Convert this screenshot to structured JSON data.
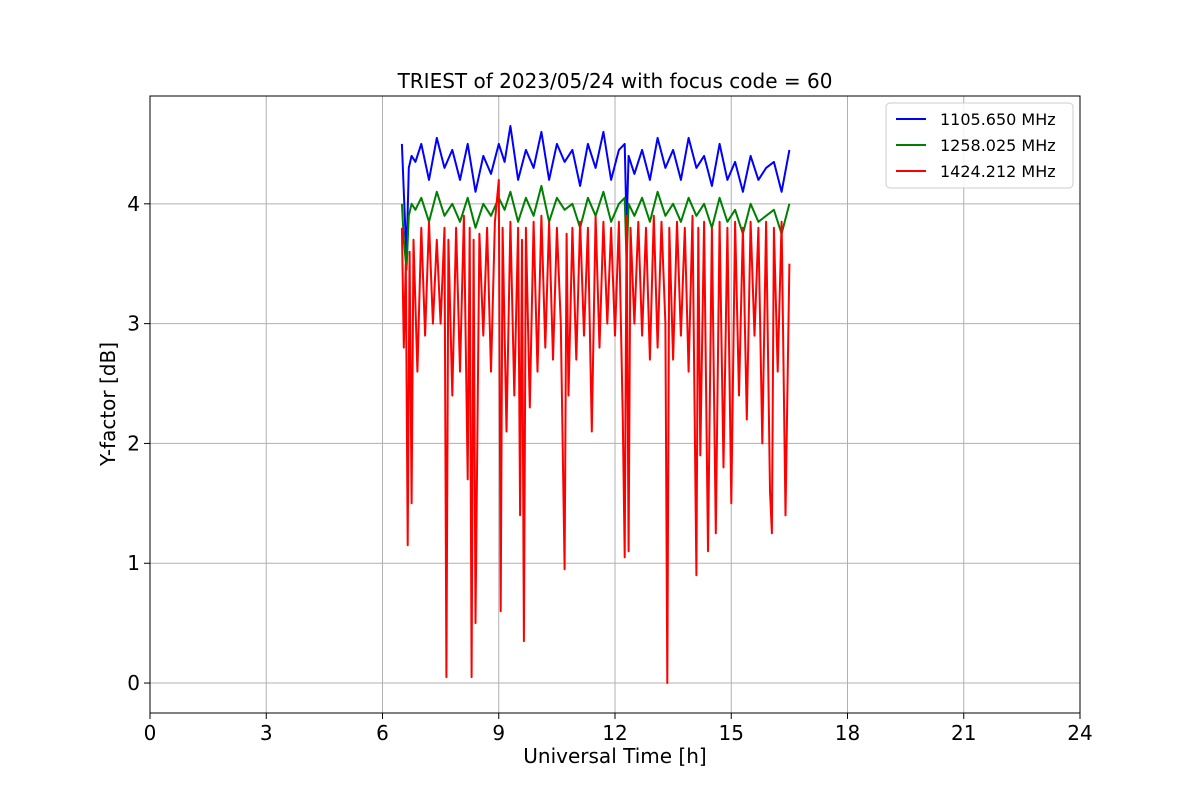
{
  "chart_data": {
    "type": "line",
    "title": "TRIEST of 2023/05/24 with focus code = 60",
    "xlabel": "Universal Time [h]",
    "ylabel": "Y-factor [dB]",
    "xlim": [
      0,
      24
    ],
    "ylim": [
      -0.25,
      4.9
    ],
    "xticks": [
      0,
      3,
      6,
      9,
      12,
      15,
      18,
      21,
      24
    ],
    "yticks": [
      0,
      1,
      2,
      3,
      4
    ],
    "grid": true,
    "legend_position": "top-right",
    "series": [
      {
        "name": "1105.650 MHz",
        "color": "#0000ff",
        "x": [
          6.5,
          6.55,
          6.62,
          6.68,
          6.75,
          6.85,
          7.0,
          7.2,
          7.4,
          7.6,
          7.8,
          8.0,
          8.2,
          8.4,
          8.6,
          8.8,
          9.0,
          9.15,
          9.3,
          9.5,
          9.7,
          9.9,
          10.1,
          10.3,
          10.5,
          10.7,
          10.9,
          11.1,
          11.3,
          11.5,
          11.7,
          11.9,
          12.1,
          12.25,
          12.3,
          12.35,
          12.5,
          12.7,
          12.9,
          13.1,
          13.3,
          13.5,
          13.7,
          13.9,
          14.1,
          14.3,
          14.5,
          14.7,
          14.9,
          15.1,
          15.3,
          15.5,
          15.7,
          15.9,
          16.1,
          16.3,
          16.5
        ],
        "y": [
          4.5,
          4.1,
          3.55,
          4.3,
          4.4,
          4.35,
          4.5,
          4.2,
          4.55,
          4.3,
          4.45,
          4.2,
          4.5,
          4.1,
          4.4,
          4.25,
          4.5,
          4.35,
          4.65,
          4.2,
          4.45,
          4.3,
          4.6,
          4.2,
          4.5,
          4.35,
          4.45,
          4.15,
          4.5,
          4.3,
          4.6,
          4.2,
          4.45,
          4.5,
          3.8,
          4.4,
          4.25,
          4.45,
          4.2,
          4.55,
          4.3,
          4.45,
          4.2,
          4.55,
          4.3,
          4.4,
          4.15,
          4.5,
          4.2,
          4.35,
          4.1,
          4.4,
          4.2,
          4.3,
          4.35,
          4.1,
          4.45
        ]
      },
      {
        "name": "1258.025 MHz",
        "color": "#008000",
        "x": [
          6.5,
          6.55,
          6.62,
          6.68,
          6.75,
          6.85,
          7.0,
          7.2,
          7.4,
          7.6,
          7.8,
          8.0,
          8.2,
          8.4,
          8.6,
          8.8,
          9.0,
          9.15,
          9.3,
          9.5,
          9.7,
          9.9,
          10.1,
          10.3,
          10.5,
          10.7,
          10.9,
          11.1,
          11.3,
          11.5,
          11.7,
          11.9,
          12.1,
          12.25,
          12.3,
          12.35,
          12.5,
          12.7,
          12.9,
          13.1,
          13.3,
          13.5,
          13.7,
          13.9,
          14.1,
          14.3,
          14.5,
          14.7,
          14.9,
          15.1,
          15.3,
          15.5,
          15.7,
          15.9,
          16.1,
          16.3,
          16.5
        ],
        "y": [
          4.0,
          3.7,
          3.45,
          3.9,
          4.0,
          3.95,
          4.05,
          3.85,
          4.1,
          3.9,
          4.0,
          3.85,
          4.05,
          3.8,
          4.0,
          3.9,
          4.05,
          3.95,
          4.1,
          3.85,
          4.05,
          3.9,
          4.15,
          3.85,
          4.05,
          3.95,
          4.0,
          3.8,
          4.05,
          3.9,
          4.1,
          3.85,
          4.0,
          4.05,
          3.5,
          4.0,
          3.9,
          4.05,
          3.85,
          4.1,
          3.9,
          4.0,
          3.85,
          4.05,
          3.9,
          4.0,
          3.8,
          4.05,
          3.85,
          3.95,
          3.75,
          4.0,
          3.85,
          3.9,
          3.95,
          3.75,
          4.0
        ]
      },
      {
        "name": "1424.212 MHz",
        "color": "#ff0000",
        "x": [
          6.5,
          6.55,
          6.6,
          6.65,
          6.7,
          6.75,
          6.8,
          6.9,
          7.0,
          7.1,
          7.2,
          7.3,
          7.4,
          7.5,
          7.6,
          7.65,
          7.7,
          7.8,
          7.9,
          8.0,
          8.1,
          8.2,
          8.25,
          8.3,
          8.35,
          8.4,
          8.5,
          8.6,
          8.7,
          8.8,
          8.9,
          9.0,
          9.05,
          9.1,
          9.2,
          9.3,
          9.4,
          9.5,
          9.55,
          9.6,
          9.65,
          9.7,
          9.8,
          9.9,
          10.0,
          10.1,
          10.2,
          10.3,
          10.4,
          10.5,
          10.6,
          10.7,
          10.75,
          10.8,
          10.9,
          11.0,
          11.1,
          11.2,
          11.3,
          11.4,
          11.5,
          11.6,
          11.7,
          11.8,
          11.9,
          12.0,
          12.1,
          12.2,
          12.25,
          12.3,
          12.35,
          12.4,
          12.5,
          12.6,
          12.7,
          12.8,
          12.9,
          13.0,
          13.1,
          13.2,
          13.3,
          13.35,
          13.4,
          13.5,
          13.6,
          13.7,
          13.8,
          13.9,
          14.0,
          14.1,
          14.15,
          14.2,
          14.3,
          14.4,
          14.5,
          14.6,
          14.7,
          14.8,
          14.9,
          15.0,
          15.1,
          15.2,
          15.3,
          15.4,
          15.5,
          15.6,
          15.7,
          15.8,
          15.9,
          16.0,
          16.05,
          16.1,
          16.2,
          16.3,
          16.4,
          16.5
        ],
        "y": [
          3.8,
          2.8,
          3.5,
          1.15,
          3.6,
          1.5,
          3.7,
          2.6,
          3.8,
          2.9,
          3.85,
          3.0,
          3.7,
          3.0,
          3.8,
          0.05,
          3.7,
          2.4,
          3.8,
          2.6,
          3.9,
          1.7,
          3.8,
          0.05,
          3.7,
          0.5,
          3.75,
          2.9,
          3.8,
          2.6,
          3.85,
          4.2,
          0.6,
          3.8,
          2.1,
          3.85,
          2.4,
          3.8,
          1.4,
          3.7,
          0.35,
          3.8,
          2.3,
          3.85,
          2.6,
          3.9,
          2.8,
          3.85,
          2.7,
          3.8,
          3.0,
          0.95,
          3.75,
          2.4,
          3.8,
          2.7,
          3.85,
          2.9,
          3.8,
          2.1,
          3.9,
          2.8,
          3.85,
          3.0,
          3.8,
          2.9,
          3.85,
          2.2,
          1.05,
          3.9,
          1.1,
          3.8,
          3.0,
          3.85,
          2.9,
          3.8,
          2.7,
          3.9,
          2.8,
          3.85,
          3.0,
          0.0,
          3.8,
          2.7,
          3.85,
          2.9,
          3.8,
          2.6,
          3.9,
          0.9,
          3.8,
          1.9,
          3.85,
          1.1,
          3.8,
          1.25,
          3.85,
          1.8,
          3.8,
          1.5,
          3.85,
          2.4,
          3.8,
          2.2,
          3.85,
          2.9,
          3.8,
          2.0,
          3.85,
          1.6,
          1.25,
          3.8,
          2.6,
          3.85,
          1.4,
          3.5
        ]
      }
    ]
  }
}
